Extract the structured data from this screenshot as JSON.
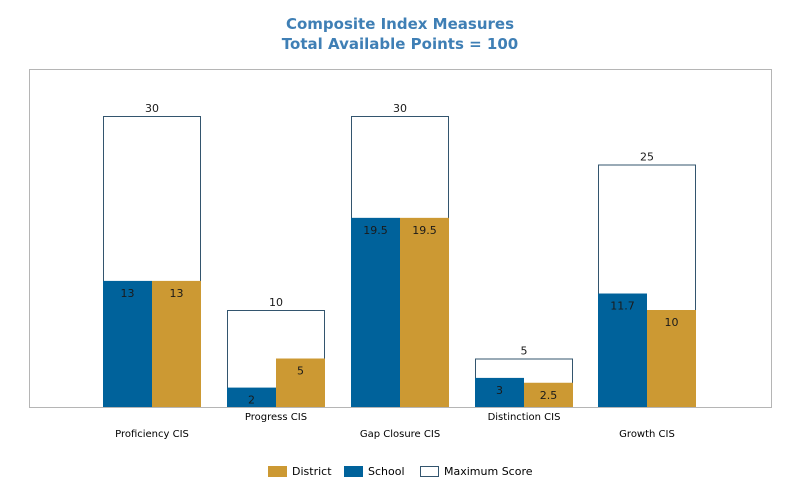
{
  "chart_data": {
    "type": "bar",
    "title": "Composite Index Measures",
    "subtitle": "Total Available Points = 100",
    "categories": [
      "Proficiency CIS",
      "Progress CIS",
      "Gap Closure CIS",
      "Distinction CIS",
      "Growth CIS"
    ],
    "series": [
      {
        "name": "Maximum Score",
        "values": [
          30,
          10,
          30,
          5,
          25
        ],
        "color": "#ffffff",
        "stroke": "#33556e"
      },
      {
        "name": "School",
        "values": [
          13,
          2,
          19.5,
          3,
          11.7
        ],
        "color": "#00629b"
      },
      {
        "name": "District",
        "values": [
          13,
          5,
          19.5,
          2.5,
          10
        ],
        "color": "#cc9933"
      }
    ],
    "value_labels": {
      "School": [
        "13",
        "2",
        "19.5",
        "3",
        "11.7"
      ],
      "District": [
        "13",
        "5",
        "19.5",
        "2.5",
        "10"
      ],
      "Maximum Score": [
        "30",
        "10",
        "30",
        "5",
        "25"
      ]
    },
    "legend": [
      "District",
      "School",
      "Maximum Score"
    ],
    "legend_position": "bottom",
    "ylim": [
      0,
      35
    ],
    "grid": false
  }
}
